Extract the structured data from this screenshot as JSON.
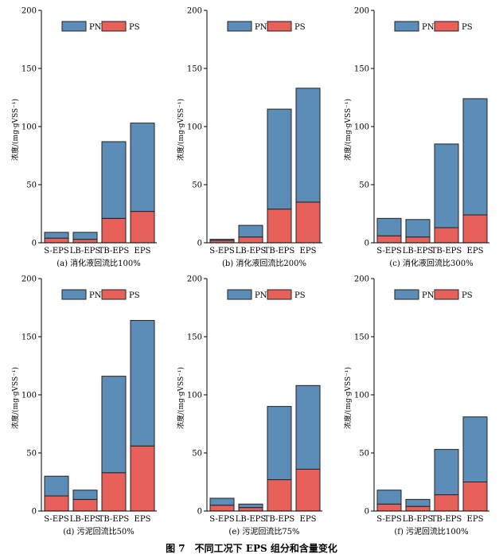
{
  "colors": {
    "PN": "#5b8db8",
    "PS": "#e8605a"
  },
  "legend": {
    "pn": "PN",
    "ps": "PS"
  },
  "figure_caption": "图 7　不同工况下 EPS 组分和含量变化",
  "chart_data": [
    {
      "type": "bar",
      "stacked": true,
      "subtitle": "(a) 消化液回流比100%",
      "ylabel": "浓度/(mg·gVSS⁻¹)",
      "ylim": [
        0,
        200
      ],
      "yticks": [
        0,
        50,
        100,
        150,
        200
      ],
      "categories": [
        "S-EPS",
        "LB-EPS",
        "TB-EPS",
        "EPS"
      ],
      "series": [
        {
          "name": "PS",
          "values": [
            4,
            3,
            21,
            27
          ]
        },
        {
          "name": "PN",
          "values": [
            5,
            6,
            66,
            76
          ]
        }
      ]
    },
    {
      "type": "bar",
      "stacked": true,
      "subtitle": "(b) 消化液回流比200%",
      "ylabel": "浓度/(mg·gVSS⁻¹)",
      "ylim": [
        0,
        200
      ],
      "yticks": [
        0,
        50,
        100,
        150,
        200
      ],
      "categories": [
        "S-EPS",
        "LB-EPS",
        "TB-EPS",
        "EPS"
      ],
      "series": [
        {
          "name": "PS",
          "values": [
            2,
            5,
            29,
            35
          ]
        },
        {
          "name": "PN",
          "values": [
            1,
            10,
            86,
            98
          ]
        }
      ]
    },
    {
      "type": "bar",
      "stacked": true,
      "subtitle": "(c) 消化液回流比300%",
      "ylabel": "浓度/(mg·gVSS⁻¹)",
      "ylim": [
        0,
        200
      ],
      "yticks": [
        0,
        50,
        100,
        150,
        200
      ],
      "categories": [
        "S-EPS",
        "LB-EPS",
        "TB-EPS",
        "EPS"
      ],
      "series": [
        {
          "name": "PS",
          "values": [
            6,
            5,
            13,
            24
          ]
        },
        {
          "name": "PN",
          "values": [
            15,
            15,
            72,
            100
          ]
        }
      ]
    },
    {
      "type": "bar",
      "stacked": true,
      "subtitle": "(d) 污泥回流比50%",
      "ylabel": "浓度/(mg·gVSS⁻¹)",
      "ylim": [
        0,
        200
      ],
      "yticks": [
        0,
        50,
        100,
        150,
        200
      ],
      "categories": [
        "S-EPS",
        "LB-EPS",
        "TB-EPS",
        "EPS"
      ],
      "series": [
        {
          "name": "PS",
          "values": [
            13,
            10,
            33,
            56
          ]
        },
        {
          "name": "PN",
          "values": [
            17,
            8,
            83,
            108
          ]
        }
      ]
    },
    {
      "type": "bar",
      "stacked": true,
      "subtitle": "(e) 污泥回流比75%",
      "ylabel": "浓度/(mg·gVSS⁻¹)",
      "ylim": [
        0,
        200
      ],
      "yticks": [
        0,
        50,
        100,
        150,
        200
      ],
      "categories": [
        "S-EPS",
        "LB-EPS",
        "TB-EPS",
        "EPS"
      ],
      "series": [
        {
          "name": "PS",
          "values": [
            5,
            3,
            27,
            36
          ]
        },
        {
          "name": "PN",
          "values": [
            6,
            3,
            63,
            72
          ]
        }
      ]
    },
    {
      "type": "bar",
      "stacked": true,
      "subtitle": "(f) 污泥回流比100%",
      "ylabel": "浓度/(mg·gVSS⁻¹)",
      "ylim": [
        0,
        200
      ],
      "yticks": [
        0,
        50,
        100,
        150,
        200
      ],
      "categories": [
        "S-EPS",
        "LB-EPS",
        "TB-EPS",
        "EPS"
      ],
      "series": [
        {
          "name": "PS",
          "values": [
            6,
            4,
            14,
            25
          ]
        },
        {
          "name": "PN",
          "values": [
            12,
            6,
            39,
            56
          ]
        }
      ]
    }
  ]
}
